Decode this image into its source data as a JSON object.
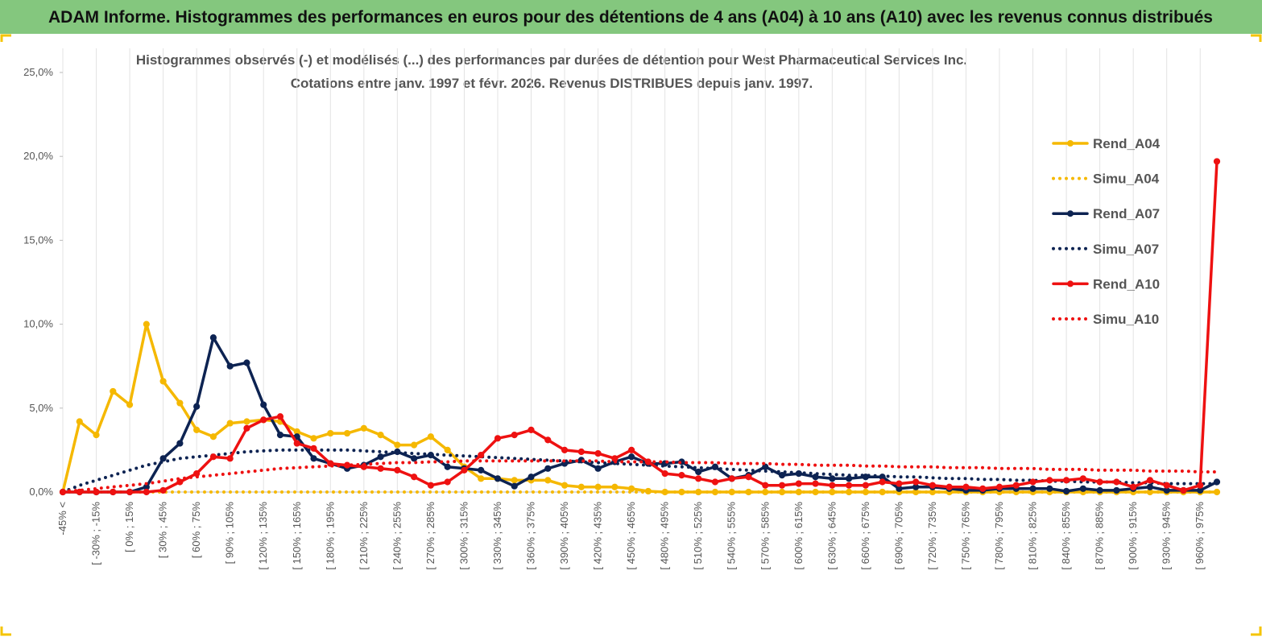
{
  "header": "ADAM Informe. Histogrammes des performances en euros pour des détentions de 4 ans (A04) à 10 ans (A10) avec les revenus connus distribués",
  "chart_data": {
    "type": "line",
    "title": "Histogrammes observés (-) et modélisés (...) des performances par durées de détention pour West Pharmaceutical Services  Inc.",
    "subtitle": "Cotations entre janv. 1997 et févr. 2026. Revenus DISTRIBUES depuis janv. 1997.",
    "categories": [
      "-45% <",
      null,
      "[ -30% ; -15%",
      null,
      "[ 0% ; 15%",
      null,
      "[ 30% ; 45%",
      null,
      "[ 60% ; 75%",
      null,
      "[ 90% ; 105%",
      null,
      "[ 120% ; 135%",
      null,
      "[ 150% ; 165%",
      null,
      "[ 180% ; 195%",
      null,
      "[ 210% ; 225%",
      null,
      "[ 240% ; 255%",
      null,
      "[ 270% ; 285%",
      null,
      "[ 300% ; 315%",
      null,
      "[ 330% ; 345%",
      null,
      "[ 360% ; 375%",
      null,
      "[ 390% ; 405%",
      null,
      "[ 420% ; 435%",
      null,
      "[ 450% ; 465%",
      null,
      "[ 480% ; 495%",
      null,
      "[ 510% ; 525%",
      null,
      "[ 540% ; 555%",
      null,
      "[ 570% ; 585%",
      null,
      "[ 600% ; 615%",
      null,
      "[ 630% ; 645%",
      null,
      "[ 660% ; 675%",
      null,
      "[ 690% ; 705%",
      null,
      "[ 720% ; 735%",
      null,
      "[ 750% ; 765%",
      null,
      "[ 780% ; 795%",
      null,
      "[ 810% ; 825%",
      null,
      "[ 840% ; 855%",
      null,
      "[ 870% ; 885%",
      null,
      "[ 900% ; 915%",
      null,
      "[ 930% ; 945%",
      null,
      "[ 960% ; 975%",
      null
    ],
    "ylim": [
      0,
      25
    ],
    "yticks": [
      {
        "value": 0,
        "label": "0,0%"
      },
      {
        "value": 5,
        "label": "5,0%"
      },
      {
        "value": 10,
        "label": "10,0%"
      },
      {
        "value": 15,
        "label": "15,0%"
      },
      {
        "value": 20,
        "label": "20,0%"
      },
      {
        "value": 25,
        "label": "25,0%"
      }
    ],
    "grid": "x",
    "legend": "right",
    "series": [
      {
        "name": "Rend_A04",
        "color": "#f5b800",
        "style": "solid",
        "marker": true,
        "values": [
          0,
          4.2,
          3.4,
          6.0,
          5.2,
          10.0,
          6.6,
          5.3,
          3.7,
          3.3,
          4.1,
          4.2,
          4.3,
          4.2,
          3.6,
          3.2,
          3.5,
          3.5,
          3.8,
          3.4,
          2.8,
          2.8,
          3.3,
          2.5,
          1.5,
          0.8,
          0.8,
          0.7,
          0.7,
          0.7,
          0.4,
          0.3,
          0.3,
          0.3,
          0.2,
          0.05,
          0,
          0,
          0,
          0,
          0,
          0,
          0,
          0,
          0,
          0,
          0,
          0,
          0,
          0,
          0,
          0,
          0,
          0,
          0,
          0,
          0,
          0,
          0,
          0,
          0,
          0,
          0,
          0,
          0,
          0,
          0,
          0,
          0,
          0
        ]
      },
      {
        "name": "Simu_A04",
        "color": "#f5b800",
        "style": "dotted",
        "marker": false,
        "values": [
          0,
          0,
          0,
          0,
          0,
          0,
          0,
          0,
          0,
          0,
          0,
          0,
          0,
          0,
          0,
          0,
          0,
          0,
          0,
          0,
          0,
          0,
          0,
          0,
          0,
          0,
          0,
          0,
          0,
          0,
          0,
          0,
          0,
          0,
          0,
          0,
          0,
          0,
          0,
          0,
          0,
          0,
          0,
          0,
          0,
          0,
          0,
          0,
          0,
          0,
          0,
          0,
          0,
          0,
          0,
          0,
          0,
          0,
          0,
          0,
          0,
          0,
          0,
          0,
          0,
          0,
          0,
          0,
          0,
          0
        ]
      },
      {
        "name": "Rend_A07",
        "color": "#0d2352",
        "style": "solid",
        "marker": true,
        "values": [
          0,
          0,
          0,
          0,
          0,
          0.3,
          2.0,
          2.9,
          5.1,
          9.2,
          7.5,
          7.7,
          5.2,
          3.4,
          3.3,
          2.0,
          1.7,
          1.4,
          1.6,
          2.1,
          2.4,
          2.0,
          2.2,
          1.5,
          1.4,
          1.3,
          0.8,
          0.35,
          0.9,
          1.4,
          1.7,
          1.9,
          1.4,
          1.8,
          2.1,
          1.7,
          1.7,
          1.8,
          1.2,
          1.5,
          0.8,
          1.0,
          1.5,
          1.0,
          1.1,
          0.9,
          0.8,
          0.8,
          0.9,
          0.9,
          0.2,
          0.3,
          0.3,
          0.2,
          0.1,
          0.1,
          0.2,
          0.2,
          0.2,
          0.2,
          0.05,
          0.2,
          0.1,
          0.1,
          0.2,
          0.3,
          0.1,
          0.1,
          0.1,
          0.6
        ]
      },
      {
        "name": "Simu_A07",
        "color": "#0d2352",
        "style": "dotted",
        "marker": false,
        "values": [
          0,
          0.4,
          0.7,
          1.0,
          1.3,
          1.6,
          1.8,
          2.0,
          2.1,
          2.2,
          2.3,
          2.4,
          2.45,
          2.5,
          2.5,
          2.5,
          2.5,
          2.5,
          2.45,
          2.4,
          2.35,
          2.3,
          2.25,
          2.2,
          2.15,
          2.1,
          2.05,
          2.0,
          1.95,
          1.9,
          1.85,
          1.8,
          1.75,
          1.7,
          1.65,
          1.6,
          1.55,
          1.5,
          1.45,
          1.4,
          1.35,
          1.3,
          1.25,
          1.2,
          1.15,
          1.1,
          1.05,
          1.0,
          1.0,
          0.95,
          0.9,
          0.9,
          0.85,
          0.8,
          0.8,
          0.75,
          0.75,
          0.7,
          0.7,
          0.65,
          0.65,
          0.6,
          0.6,
          0.6,
          0.55,
          0.55,
          0.5,
          0.5,
          0.5,
          0.5
        ]
      },
      {
        "name": "Rend_A10",
        "color": "#ee1111",
        "style": "solid",
        "marker": true,
        "values": [
          0,
          0,
          0,
          0,
          0,
          0,
          0.1,
          0.6,
          1.1,
          2.1,
          2.0,
          3.8,
          4.3,
          4.5,
          2.9,
          2.6,
          1.7,
          1.6,
          1.5,
          1.4,
          1.3,
          0.9,
          0.4,
          0.6,
          1.3,
          2.2,
          3.2,
          3.4,
          3.7,
          3.1,
          2.5,
          2.4,
          2.3,
          2.0,
          2.5,
          1.8,
          1.1,
          1.0,
          0.8,
          0.6,
          0.8,
          0.9,
          0.4,
          0.4,
          0.5,
          0.5,
          0.4,
          0.4,
          0.4,
          0.6,
          0.5,
          0.6,
          0.4,
          0.3,
          0.3,
          0.2,
          0.3,
          0.4,
          0.6,
          0.7,
          0.7,
          0.8,
          0.6,
          0.6,
          0.3,
          0.7,
          0.4,
          0.1,
          0.4,
          19.7
        ]
      },
      {
        "name": "Simu_A10",
        "color": "#ee1111",
        "style": "dotted",
        "marker": false,
        "values": [
          0.05,
          0.1,
          0.2,
          0.3,
          0.4,
          0.5,
          0.65,
          0.8,
          0.9,
          1.0,
          1.1,
          1.2,
          1.3,
          1.4,
          1.45,
          1.5,
          1.55,
          1.6,
          1.65,
          1.7,
          1.75,
          1.75,
          1.8,
          1.8,
          1.85,
          1.85,
          1.85,
          1.85,
          1.85,
          1.85,
          1.85,
          1.85,
          1.85,
          1.8,
          1.8,
          1.8,
          1.8,
          1.75,
          1.75,
          1.75,
          1.7,
          1.7,
          1.7,
          1.65,
          1.65,
          1.6,
          1.6,
          1.6,
          1.55,
          1.55,
          1.5,
          1.5,
          1.5,
          1.45,
          1.45,
          1.45,
          1.4,
          1.4,
          1.4,
          1.35,
          1.35,
          1.35,
          1.3,
          1.3,
          1.3,
          1.25,
          1.25,
          1.25,
          1.2,
          1.2
        ]
      }
    ]
  }
}
